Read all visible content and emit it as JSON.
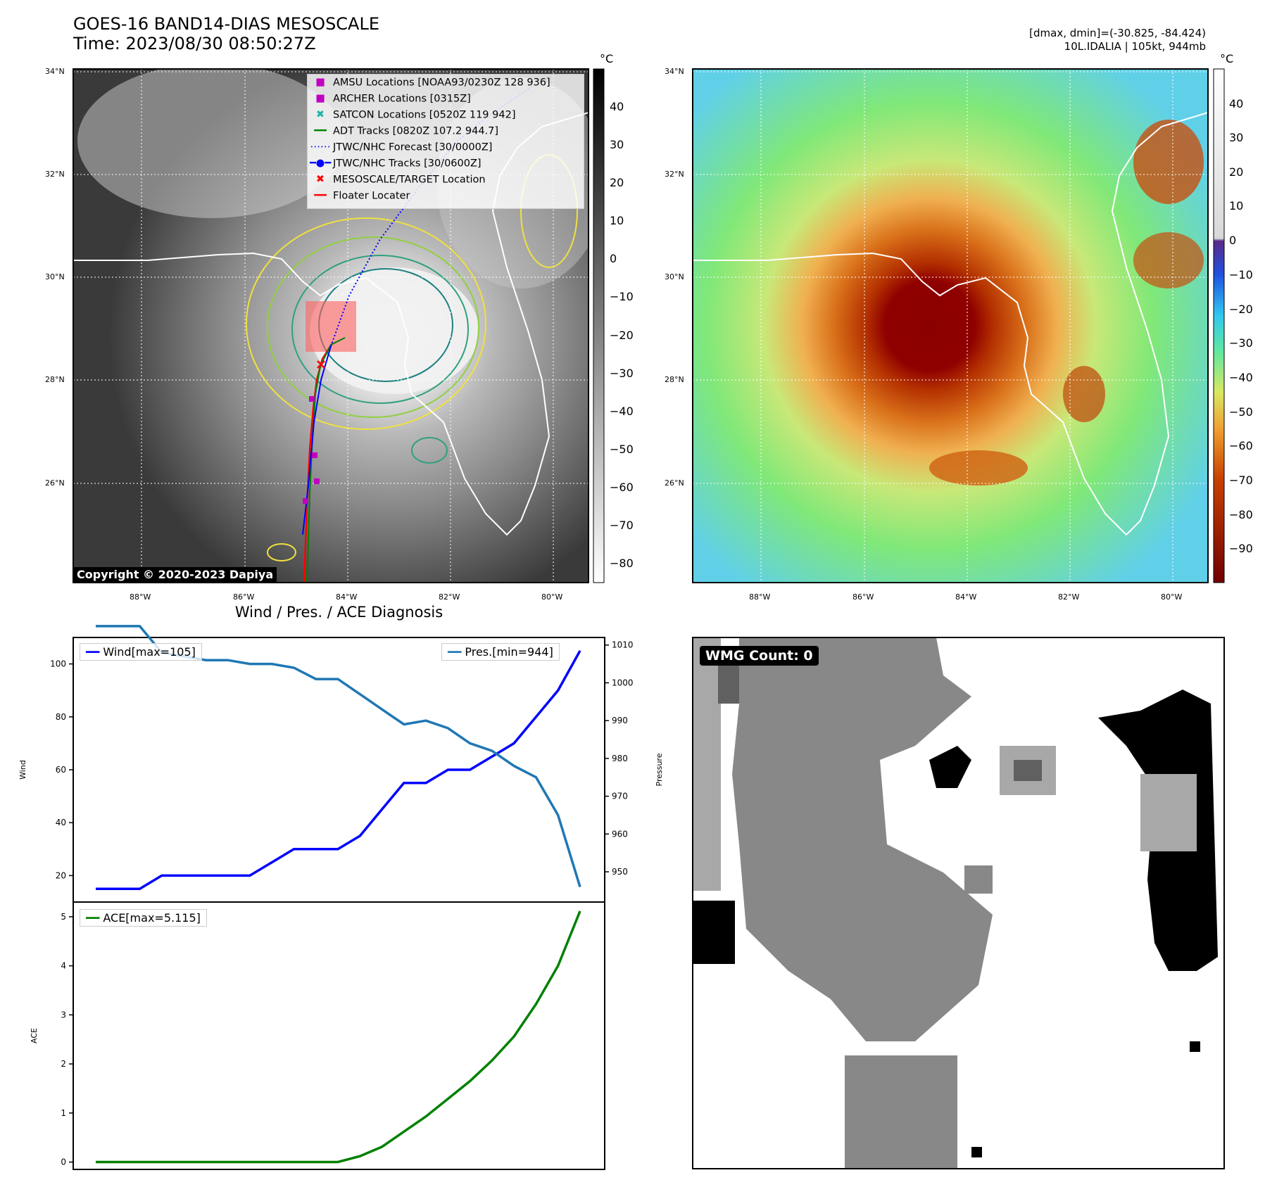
{
  "header": {
    "title_line1": "GOES-16 BAND14-DIAS MESOSCALE",
    "title_line2": "Time: 2023/08/30 08:50:27Z",
    "right_line1": "[dmax, dmin]=(-30.825, -84.424)",
    "right_line2": "10L.IDALIA | 105kt, 944mb"
  },
  "map_axes": {
    "lat_labels": [
      "34°N",
      "32°N",
      "30°N",
      "28°N",
      "26°N"
    ],
    "lon_labels": [
      "88°W",
      "86°W",
      "84°W",
      "82°W",
      "80°W"
    ]
  },
  "left_map": {
    "colorbar_unit": "°C",
    "colorbar_ticks": [
      "40",
      "30",
      "20",
      "10",
      "0",
      "−10",
      "−20",
      "−30",
      "−40",
      "−50",
      "−60",
      "−70",
      "−80"
    ],
    "copyright": "Copyright © 2020-2023 Dapiya",
    "legend": [
      {
        "label": "AMSU Locations [NOAA93/0230Z 128 936]",
        "marker": "square",
        "color": "#c000c0"
      },
      {
        "label": "ARCHER Locations [0315Z]",
        "marker": "square",
        "color": "#c000c0"
      },
      {
        "label": "SATCON Locations [0520Z 119 942]",
        "marker": "x",
        "color": "#20b2aa"
      },
      {
        "label": "ADT Tracks [0820Z 107.2 944.7]",
        "marker": "line",
        "color": "#008000"
      },
      {
        "label": "JTWC/NHC Forecast [30/0000Z]",
        "marker": "dotted",
        "color": "#0000ff"
      },
      {
        "label": "JTWC/NHC Tracks [30/0600Z]",
        "marker": "line-dot",
        "color": "#0000ff"
      },
      {
        "label": "MESOSCALE/TARGET Location",
        "marker": "x",
        "color": "#ff0000"
      },
      {
        "label": "Floater Locater",
        "marker": "line",
        "color": "#ff0000"
      }
    ]
  },
  "right_map": {
    "colorbar_unit": "°C",
    "colorbar_ticks": [
      "40",
      "30",
      "20",
      "10",
      "0",
      "−10",
      "−20",
      "−30",
      "−40",
      "−50",
      "−60",
      "−70",
      "−80",
      "−90"
    ]
  },
  "diagnosis_title": "Wind / Pres. / ACE Diagnosis",
  "wmg_label": "WMG Count: 0",
  "chart_data": [
    {
      "type": "line",
      "title": "Wind / Pres. / ACE Diagnosis",
      "ylabel": "Wind",
      "y2label": "Pressure",
      "ylim": [
        10,
        110
      ],
      "y2lim": [
        942,
        1012
      ],
      "yticks": [
        20,
        40,
        60,
        80,
        100
      ],
      "y2ticks": [
        950,
        960,
        970,
        980,
        990,
        1000,
        1010
      ],
      "series": [
        {
          "name": "Wind[max=105]",
          "color": "#0000ff",
          "axis": "left",
          "values": [
            15,
            15,
            15,
            20,
            20,
            20,
            20,
            20,
            25,
            30,
            30,
            30,
            35,
            45,
            55,
            55,
            60,
            60,
            65,
            70,
            80,
            90,
            105
          ]
        },
        {
          "name": "Pres.[min=944]",
          "color": "#1f77b4",
          "axis": "right",
          "values": [
            1015,
            1015,
            1015,
            1008,
            1007,
            1006,
            1006,
            1005,
            1005,
            1004,
            1001,
            1001,
            997,
            993,
            989,
            990,
            988,
            984,
            982,
            978,
            975,
            965,
            946
          ]
        }
      ]
    },
    {
      "type": "line",
      "ylabel": "ACE",
      "ylim": [
        -0.15,
        5.3
      ],
      "yticks": [
        0,
        1,
        2,
        3,
        4,
        5
      ],
      "series": [
        {
          "name": "ACE[max=5.115]",
          "color": "#008000",
          "values": [
            0,
            0,
            0,
            0,
            0,
            0,
            0,
            0,
            0,
            0,
            0,
            0,
            0.12,
            0.31,
            0.62,
            0.93,
            1.29,
            1.65,
            2.07,
            2.56,
            3.22,
            4.0,
            5.115
          ]
        }
      ]
    }
  ]
}
